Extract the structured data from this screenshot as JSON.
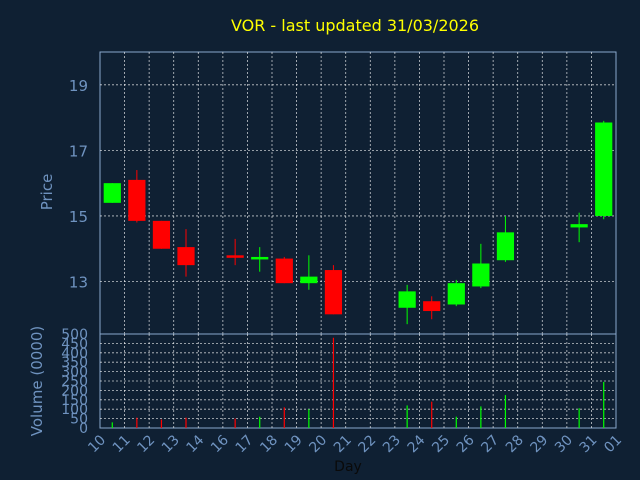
{
  "colors": {
    "background": "#0f2033",
    "title": "#ffff00",
    "axis_text": "#6f93c0",
    "grid": "#ffffff",
    "frame": "#8aa8cc",
    "up": "#00ff00",
    "down": "#ff0000"
  },
  "chart_data": {
    "type": "candlestick",
    "title": "VOR - last updated 31/03/2026",
    "price_panel": {
      "ylabel": "Price",
      "ylim": [
        11.4,
        20.0
      ],
      "y_ticks": [
        13,
        15,
        17,
        19
      ],
      "grid": true
    },
    "volume_panel": {
      "ylabel": "Volume (0000)",
      "ylim": [
        0,
        500
      ],
      "y_ticks": [
        0,
        50,
        100,
        150,
        200,
        250,
        300,
        350,
        400,
        450,
        500
      ],
      "grid": true
    },
    "xlabel": "Day",
    "x_ticks": [
      "10",
      "11",
      "12",
      "13",
      "14",
      "16",
      "17",
      "18",
      "19",
      "20",
      "21",
      "22",
      "23",
      "24",
      "25",
      "26",
      "27",
      "28",
      "29",
      "30",
      "31",
      "01"
    ],
    "candles": [
      {
        "day": "10",
        "open": 15.4,
        "high": 16.0,
        "low": 15.4,
        "close": 16.0,
        "volume": 30
      },
      {
        "day": "11",
        "open": 16.1,
        "high": 16.4,
        "low": 14.8,
        "close": 14.85,
        "volume": 55
      },
      {
        "day": "12",
        "open": 14.85,
        "high": 14.85,
        "low": 14.0,
        "close": 14.0,
        "volume": 45
      },
      {
        "day": "13",
        "open": 14.05,
        "high": 14.6,
        "low": 13.15,
        "close": 13.5,
        "volume": 55
      },
      {
        "day": "16",
        "open": 13.8,
        "high": 14.3,
        "low": 13.5,
        "close": 13.75,
        "volume": 50
      },
      {
        "day": "17",
        "open": 13.7,
        "high": 14.05,
        "low": 13.3,
        "close": 13.75,
        "volume": 60
      },
      {
        "day": "18",
        "open": 13.7,
        "high": 13.75,
        "low": 12.95,
        "close": 12.95,
        "volume": 110
      },
      {
        "day": "19",
        "open": 12.95,
        "high": 13.8,
        "low": 12.75,
        "close": 13.15,
        "volume": 100
      },
      {
        "day": "20",
        "open": 13.35,
        "high": 13.5,
        "low": 12.0,
        "close": 12.0,
        "volume": 480
      },
      {
        "day": "23",
        "open": 12.2,
        "high": 12.9,
        "low": 11.7,
        "close": 12.7,
        "volume": 120
      },
      {
        "day": "24",
        "open": 12.4,
        "high": 12.55,
        "low": 11.85,
        "close": 12.1,
        "volume": 140
      },
      {
        "day": "25",
        "open": 12.3,
        "high": 13.05,
        "low": 12.25,
        "close": 12.95,
        "volume": 60
      },
      {
        "day": "26",
        "open": 12.85,
        "high": 14.15,
        "low": 12.8,
        "close": 13.55,
        "volume": 115
      },
      {
        "day": "27",
        "open": 13.65,
        "high": 15.0,
        "low": 13.6,
        "close": 14.5,
        "volume": 175
      },
      {
        "day": "30",
        "open": 14.65,
        "high": 15.1,
        "low": 14.2,
        "close": 14.75,
        "volume": 105
      },
      {
        "day": "31",
        "open": 15.0,
        "high": 17.9,
        "low": 14.9,
        "close": 17.85,
        "volume": 245
      }
    ]
  }
}
